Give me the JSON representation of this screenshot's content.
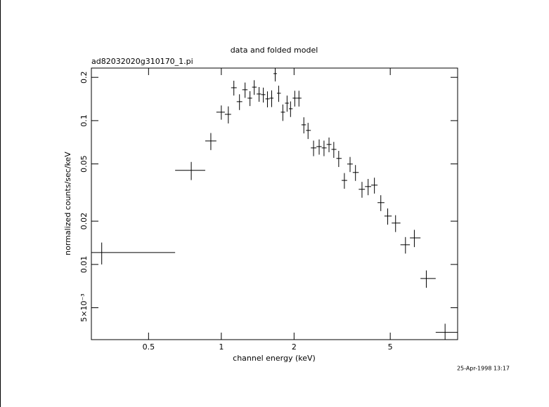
{
  "chart_data": {
    "type": "scatter",
    "title": "data and folded model",
    "subtitle": "ad82032020g310170_1.pi",
    "x_label": "channel energy (keV)",
    "y_label": "normalized counts/sec/keV",
    "timestamp": "25-Apr-1998 13:17",
    "log_x": true,
    "log_y": true,
    "xlim": [
      0.29,
      9.5
    ],
    "ylim": [
      0.003,
      0.232
    ],
    "xticks": [
      0.5,
      1,
      2,
      5
    ],
    "yticks": [
      0.2,
      0.1,
      0.05,
      0.02,
      0.01,
      {
        "value": 0.005,
        "label": "5×10⁻³"
      }
    ],
    "series": [
      {
        "color": "#000000",
        "x": [
          0.32,
          0.751,
          0.905,
          1.0,
          1.069,
          1.127,
          1.189,
          1.254,
          1.314,
          1.368,
          1.433,
          1.492,
          1.552,
          1.616,
          1.671,
          1.727,
          1.797,
          1.871,
          1.934,
          2.013,
          2.095,
          2.195,
          2.285,
          2.408,
          2.54,
          2.66,
          2.79,
          2.92,
          3.06,
          3.23,
          3.41,
          3.59,
          3.82,
          4.05,
          4.3,
          4.57,
          4.88,
          5.26,
          5.78,
          6.29,
          7.05,
          8.43
        ],
        "x_low": [
          0.25,
          0.644,
          0.858,
          0.954,
          1.034,
          1.098,
          1.158,
          1.221,
          1.284,
          1.341,
          1.4,
          1.462,
          1.522,
          1.584,
          1.644,
          1.699,
          1.763,
          1.835,
          1.903,
          1.973,
          2.053,
          2.146,
          2.241,
          2.346,
          2.475,
          2.602,
          2.727,
          2.856,
          2.994,
          3.147,
          3.318,
          3.498,
          3.703,
          3.93,
          4.17,
          4.43,
          4.73,
          5.07,
          5.51,
          6.03,
          6.67,
          7.71
        ],
        "x_high": [
          0.644,
          0.858,
          0.954,
          1.034,
          1.098,
          1.158,
          1.221,
          1.284,
          1.341,
          1.4,
          1.462,
          1.522,
          1.584,
          1.644,
          1.699,
          1.763,
          1.835,
          1.903,
          1.973,
          2.053,
          2.146,
          2.241,
          2.346,
          2.475,
          2.602,
          2.727,
          2.856,
          2.994,
          3.147,
          3.318,
          3.498,
          3.703,
          3.93,
          4.17,
          4.43,
          4.73,
          5.07,
          5.51,
          6.03,
          6.67,
          7.71,
          10
        ],
        "values": [
          0.0121,
          0.0451,
          0.0722,
          0.1145,
          0.1106,
          0.1694,
          0.1355,
          0.164,
          0.1433,
          0.171,
          0.1532,
          0.1516,
          0.1417,
          0.1433,
          0.2123,
          0.155,
          0.1145,
          0.1323,
          0.121,
          0.1433,
          0.1433,
          0.0935,
          0.0855,
          0.0646,
          0.066,
          0.0646,
          0.0683,
          0.0631,
          0.0546,
          0.0384,
          0.0499,
          0.0436,
          0.0333,
          0.0348,
          0.0356,
          0.0269,
          0.0217,
          0.0194,
          0.0137,
          0.0153,
          0.00798,
          0.00337
        ],
        "yerr": [
          0.0021,
          0.0065,
          0.0098,
          0.013,
          0.015,
          0.02,
          0.017,
          0.02,
          0.017,
          0.02,
          0.018,
          0.018,
          0.018,
          0.019,
          0.025,
          0.02,
          0.015,
          0.017,
          0.015,
          0.018,
          0.018,
          0.012,
          0.011,
          0.008,
          0.008,
          0.008,
          0.008,
          0.008,
          0.007,
          0.0048,
          0.006,
          0.0055,
          0.0042,
          0.0045,
          0.0045,
          0.0034,
          0.0028,
          0.0026,
          0.0018,
          0.0021,
          0.0011,
          0.0005
        ]
      }
    ]
  }
}
